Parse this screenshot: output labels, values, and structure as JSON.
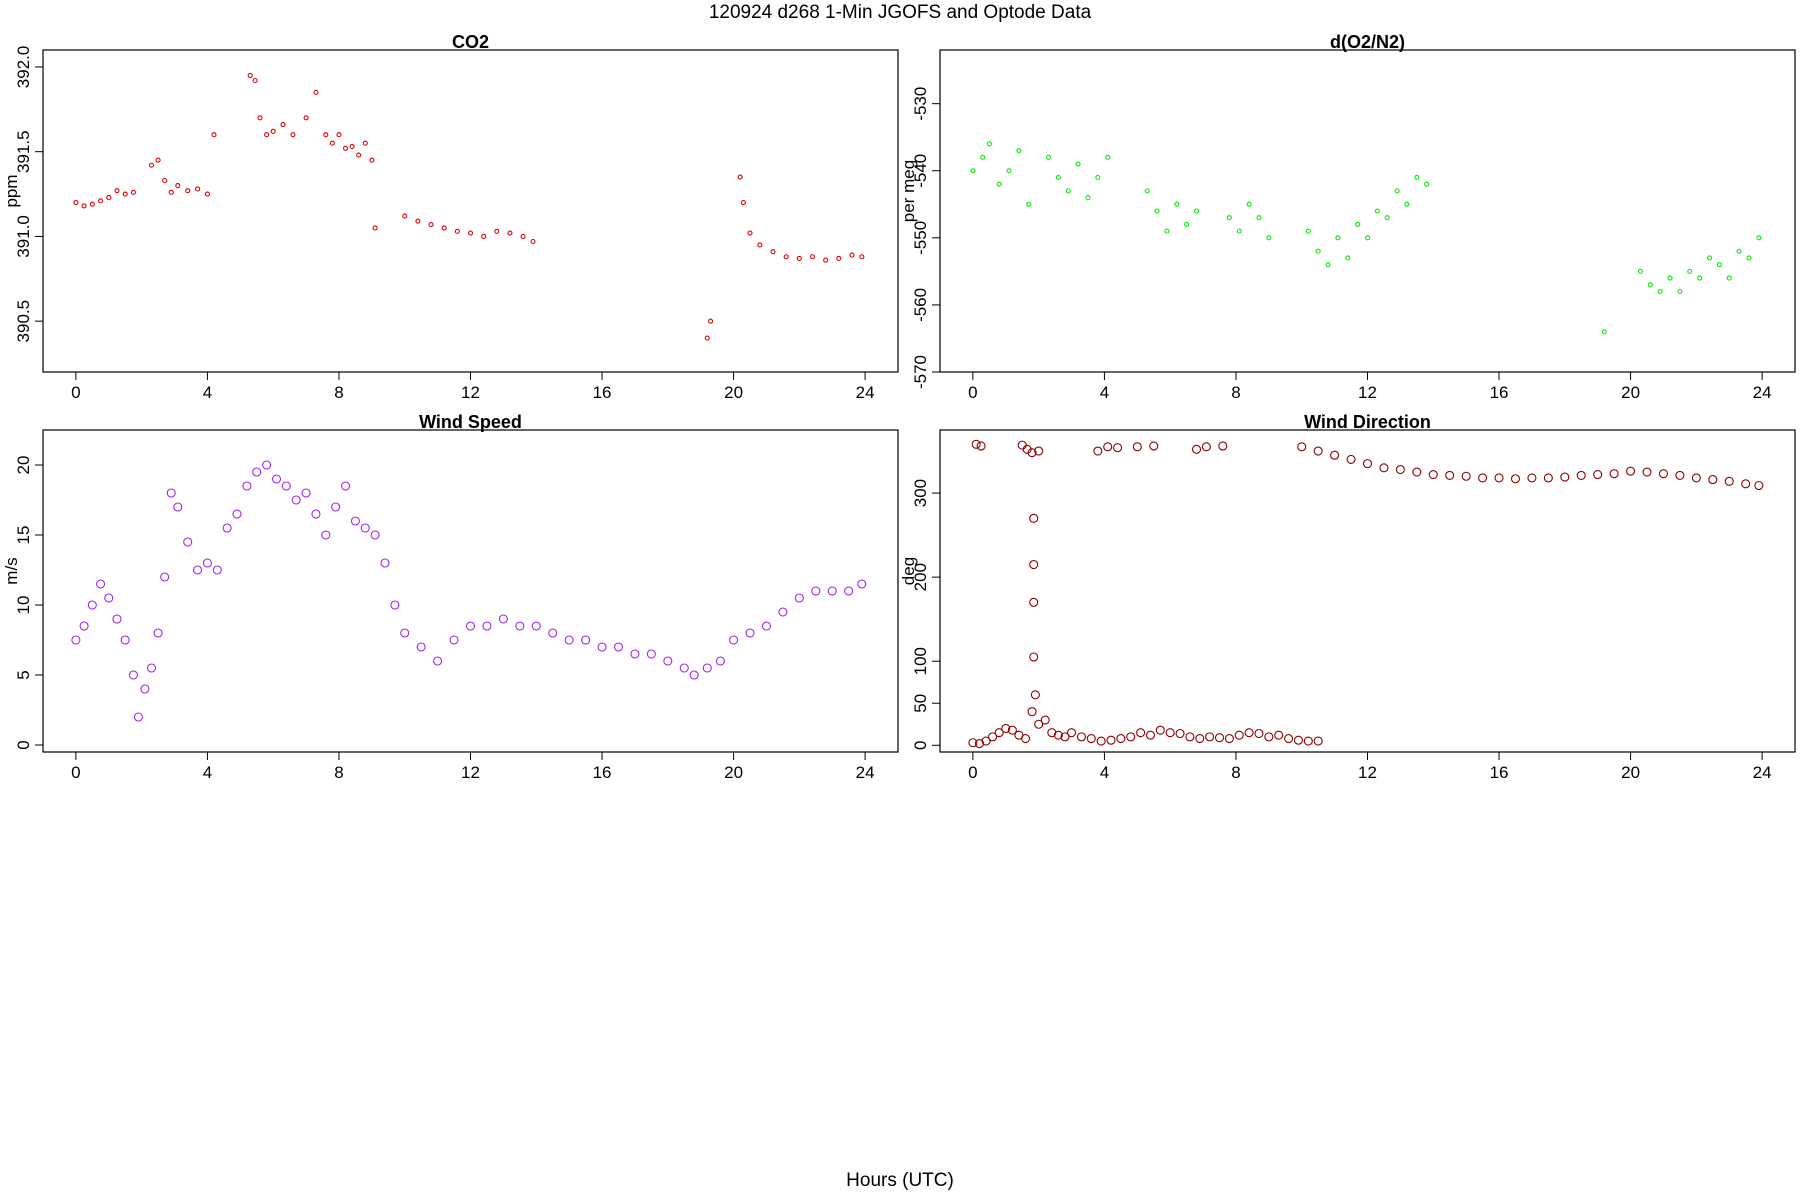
{
  "figure": {
    "suptitle": "120924   d268   1-Min  JGOFS and Optode Data",
    "xlabel": "Hours (UTC)"
  },
  "chart_data": [
    {
      "id": "co2",
      "type": "scatter",
      "title": "CO2",
      "ylabel": "ppm",
      "xlim": [
        -1,
        25
      ],
      "ylim": [
        390.2,
        392.1
      ],
      "xticks": [
        0,
        4,
        8,
        12,
        16,
        20,
        24
      ],
      "yticks": [
        390.5,
        391.0,
        391.5,
        392.0
      ],
      "ytick_labels": [
        "390.5",
        "391.0",
        "391.5",
        "392.0"
      ],
      "color": "#e00000",
      "series": [
        {
          "x": [
            0,
            0.25,
            0.5,
            0.75,
            1.0,
            1.25,
            1.5,
            1.75,
            2.3,
            2.5,
            2.7,
            2.9,
            3.1,
            3.4,
            3.7,
            4.0,
            4.2,
            5.3,
            5.45,
            5.6,
            5.8,
            6.0,
            6.3,
            6.6,
            7.0,
            7.3,
            7.6,
            7.8,
            8.0,
            8.2,
            8.4,
            8.6,
            8.8,
            9.0,
            9.1,
            10.0,
            10.4,
            10.8,
            11.2,
            11.6,
            12.0,
            12.4,
            12.8,
            13.2,
            13.6,
            13.9,
            19.2,
            19.3,
            20.2,
            20.3,
            20.5,
            20.8,
            21.2,
            21.6,
            22.0,
            22.4,
            22.8,
            23.2,
            23.6,
            23.9
          ],
          "y": [
            391.2,
            391.18,
            391.19,
            391.21,
            391.23,
            391.27,
            391.25,
            391.26,
            391.42,
            391.45,
            391.33,
            391.26,
            391.3,
            391.27,
            391.28,
            391.25,
            391.6,
            391.95,
            391.92,
            391.7,
            391.6,
            391.62,
            391.66,
            391.6,
            391.7,
            391.85,
            391.6,
            391.55,
            391.6,
            391.52,
            391.53,
            391.48,
            391.55,
            391.45,
            391.05,
            391.12,
            391.09,
            391.07,
            391.05,
            391.03,
            391.02,
            391.0,
            391.03,
            391.02,
            391.0,
            390.97,
            390.4,
            390.5,
            391.35,
            391.2,
            391.02,
            390.95,
            390.91,
            390.88,
            390.87,
            390.88,
            390.86,
            390.87,
            390.89,
            390.88
          ]
        }
      ]
    },
    {
      "id": "o2n2",
      "type": "scatter",
      "title": "d(O2/N2)",
      "ylabel": "per meg",
      "xlim": [
        -1,
        25
      ],
      "ylim": [
        -570,
        -522
      ],
      "xticks": [
        0,
        4,
        8,
        12,
        16,
        20,
        24
      ],
      "yticks": [
        -570,
        -560,
        -550,
        -540,
        -530
      ],
      "ytick_labels": [
        "-570",
        "-560",
        "-550",
        "-540",
        "-530"
      ],
      "color": "#00ee00",
      "series": [
        {
          "x": [
            0.0,
            0.3,
            0.5,
            0.8,
            1.1,
            1.4,
            1.7,
            2.3,
            2.6,
            2.9,
            3.2,
            3.5,
            3.8,
            4.1,
            5.3,
            5.6,
            5.9,
            6.2,
            6.5,
            6.8,
            7.8,
            8.1,
            8.4,
            8.7,
            9.0,
            10.2,
            10.5,
            10.8,
            11.1,
            11.4,
            11.7,
            12.0,
            12.3,
            12.6,
            12.9,
            13.2,
            13.5,
            13.8,
            19.2,
            20.3,
            20.6,
            20.9,
            21.2,
            21.5,
            21.8,
            22.1,
            22.4,
            22.7,
            23.0,
            23.3,
            23.6,
            23.9
          ],
          "y": [
            -540,
            -538,
            -536,
            -542,
            -540,
            -537,
            -545,
            -538,
            -541,
            -543,
            -539,
            -544,
            -541,
            -538,
            -543,
            -546,
            -549,
            -545,
            -548,
            -546,
            -547,
            -549,
            -545,
            -547,
            -550,
            -549,
            -552,
            -554,
            -550,
            -553,
            -548,
            -550,
            -546,
            -547,
            -543,
            -545,
            -541,
            -542,
            -564,
            -555,
            -557,
            -558,
            -556,
            -558,
            -555,
            -556,
            -553,
            -554,
            -556,
            -552,
            -553,
            -550
          ]
        }
      ]
    },
    {
      "id": "wind_speed",
      "type": "scatter",
      "title": "Wind Speed",
      "ylabel": "m/s",
      "xlim": [
        -1,
        25
      ],
      "ylim": [
        -0.5,
        22.5
      ],
      "xticks": [
        0,
        4,
        8,
        12,
        16,
        20,
        24
      ],
      "yticks": [
        0,
        5,
        10,
        15,
        20
      ],
      "ytick_labels": [
        "0",
        "5",
        "10",
        "15",
        "20"
      ],
      "color": "#a020f0",
      "series": [
        {
          "x": [
            0.0,
            0.25,
            0.5,
            0.75,
            1.0,
            1.25,
            1.5,
            1.75,
            1.9,
            2.1,
            2.3,
            2.5,
            2.7,
            2.9,
            3.1,
            3.4,
            3.7,
            4.0,
            4.3,
            4.6,
            4.9,
            5.2,
            5.5,
            5.8,
            6.1,
            6.4,
            6.7,
            7.0,
            7.3,
            7.6,
            7.9,
            8.2,
            8.5,
            8.8,
            9.1,
            9.4,
            9.7,
            10.0,
            10.5,
            11.0,
            11.5,
            12.0,
            12.5,
            13.0,
            13.5,
            14.0,
            14.5,
            15.0,
            15.5,
            16.0,
            16.5,
            17.0,
            17.5,
            18.0,
            18.5,
            18.8,
            19.2,
            19.6,
            20.0,
            20.5,
            21.0,
            21.5,
            22.0,
            22.5,
            23.0,
            23.5,
            23.9
          ],
          "y": [
            7.5,
            8.5,
            10.0,
            11.5,
            10.5,
            9.0,
            7.5,
            5.0,
            2.0,
            4.0,
            5.5,
            8.0,
            12.0,
            18.0,
            17.0,
            14.5,
            12.5,
            13.0,
            12.5,
            15.5,
            16.5,
            18.5,
            19.5,
            20.0,
            19.0,
            18.5,
            17.5,
            18.0,
            16.5,
            15.0,
            17.0,
            18.5,
            16.0,
            15.5,
            15.0,
            13.0,
            10.0,
            8.0,
            7.0,
            6.0,
            7.5,
            8.5,
            8.5,
            9.0,
            8.5,
            8.5,
            8.0,
            7.5,
            7.5,
            7.0,
            7.0,
            6.5,
            6.5,
            6.0,
            5.5,
            5.0,
            5.5,
            6.0,
            7.5,
            8.0,
            8.5,
            9.5,
            10.5,
            11.0,
            11.0,
            11.0,
            11.5
          ]
        }
      ]
    },
    {
      "id": "wind_dir",
      "type": "scatter",
      "title": "Wind Direction",
      "ylabel": "deg",
      "xlim": [
        -1,
        25
      ],
      "ylim": [
        -8,
        375
      ],
      "xticks": [
        0,
        4,
        8,
        12,
        16,
        20,
        24
      ],
      "yticks": [
        0,
        50,
        100,
        200,
        300
      ],
      "ytick_labels": [
        "0",
        "50",
        "100",
        "200",
        "300"
      ],
      "color": "#8b0000",
      "series": [
        {
          "x": [
            0.0,
            0.2,
            0.4,
            0.6,
            0.8,
            1.0,
            1.2,
            1.4,
            1.6,
            1.8,
            1.9,
            2.0,
            2.2,
            2.4,
            2.6,
            2.8,
            3.0,
            3.3,
            3.6,
            3.9,
            4.2,
            4.5,
            4.8,
            5.1,
            5.4,
            5.7,
            6.0,
            6.3,
            6.6,
            6.9,
            7.2,
            7.5,
            7.8,
            8.1,
            8.4,
            8.7,
            9.0,
            9.3,
            9.6,
            9.9,
            10.2,
            10.5,
            0.1,
            0.25,
            1.5,
            1.65,
            1.8,
            2.0,
            3.8,
            4.1,
            4.4,
            5.0,
            5.5,
            6.8,
            7.1,
            7.6,
            1.85,
            1.85,
            1.85,
            1.85,
            10.0,
            10.5,
            11.0,
            11.5,
            12.0,
            12.5,
            13.0,
            13.5,
            14.0,
            14.5,
            15.0,
            15.5,
            16.0,
            16.5,
            17.0,
            17.5,
            18.0,
            18.5,
            19.0,
            19.5,
            20.0,
            20.5,
            21.0,
            21.5,
            22.0,
            22.5,
            23.0,
            23.5,
            23.9
          ],
          "y": [
            3,
            2,
            5,
            10,
            15,
            20,
            18,
            12,
            8,
            40,
            60,
            25,
            30,
            15,
            12,
            10,
            15,
            10,
            8,
            5,
            6,
            8,
            10,
            15,
            12,
            18,
            15,
            14,
            10,
            8,
            10,
            9,
            8,
            12,
            15,
            14,
            10,
            12,
            8,
            6,
            5,
            5,
            358,
            356,
            357,
            352,
            348,
            350,
            350,
            355,
            354,
            355,
            356,
            352,
            355,
            356,
            270,
            215,
            170,
            105,
            355,
            350,
            345,
            340,
            335,
            330,
            328,
            325,
            322,
            321,
            320,
            318,
            318,
            317,
            318,
            318,
            319,
            321,
            322,
            323,
            326,
            325,
            323,
            321,
            318,
            316,
            314,
            311,
            309
          ]
        }
      ]
    }
  ]
}
